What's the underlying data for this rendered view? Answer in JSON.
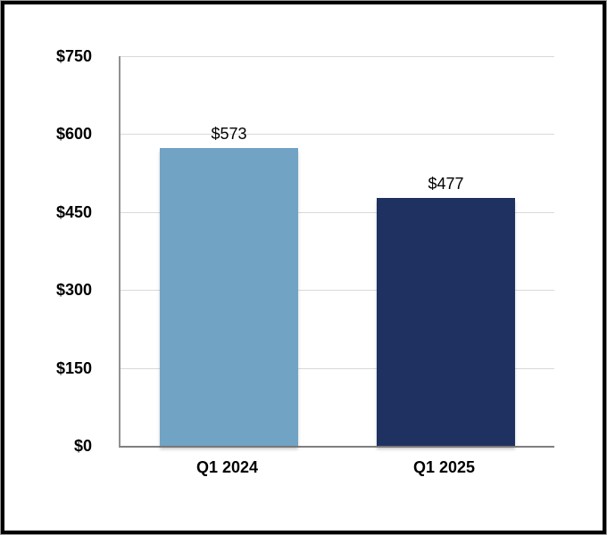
{
  "frame": {
    "background": "#ffffff",
    "border_color": "#000000",
    "outer_edge_color": "#9b9b9b"
  },
  "chart_data": {
    "type": "bar",
    "categories": [
      "Q1 2024",
      "Q1 2025"
    ],
    "values": [
      573,
      477
    ],
    "value_labels": [
      "$573",
      "$477"
    ],
    "series": [
      {
        "name": "Q1 2024",
        "value": 573,
        "label": "$573",
        "color": "#71A3C5"
      },
      {
        "name": "Q1 2025",
        "value": 477,
        "label": "$477",
        "color": "#1F3161"
      }
    ],
    "y_ticks": [
      {
        "value": 750,
        "label": "$750"
      },
      {
        "value": 600,
        "label": "$600"
      },
      {
        "value": 450,
        "label": "$450"
      },
      {
        "value": 300,
        "label": "$300"
      },
      {
        "value": 150,
        "label": "$150"
      },
      {
        "value": 0,
        "label": "$0"
      }
    ],
    "ylim": [
      0,
      750
    ],
    "grid": true,
    "legend": false,
    "gridline_color": "#d9d9d9",
    "axis_line_color": "#7f7f7f",
    "bar_colors": [
      "#71A3C5",
      "#1F3161"
    ]
  }
}
